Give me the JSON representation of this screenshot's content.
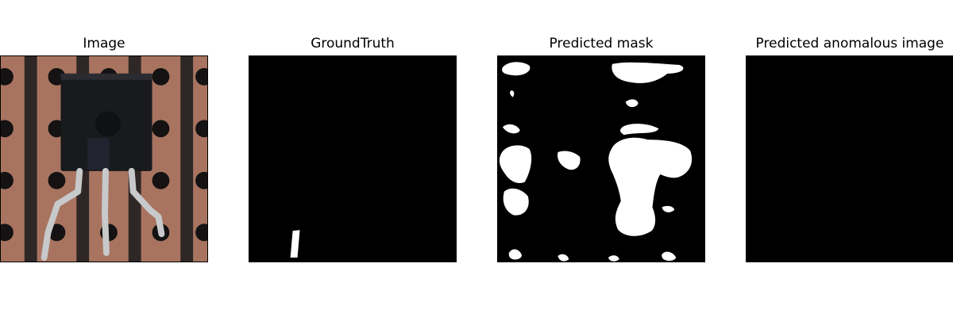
{
  "panels": [
    {
      "title": "Image"
    },
    {
      "title": "GroundTruth"
    },
    {
      "title": "Predicted mask"
    },
    {
      "title": "Predicted anomalous image"
    }
  ],
  "colors": {
    "pcb": "#a87460",
    "strip": "#2f2726",
    "hole": "#141212",
    "body": "#191a1e",
    "lead": "#c7c9cb",
    "mask": "#ffffff",
    "background": "#000000"
  }
}
